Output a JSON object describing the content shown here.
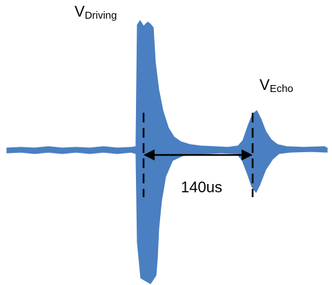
{
  "labels": {
    "driving_main": "V",
    "driving_sub": "Driving",
    "echo_main": "V",
    "echo_sub": "Echo",
    "delay": "140us"
  },
  "colors": {
    "waveform": "#4a7fc1",
    "annotation": "#000000"
  }
}
